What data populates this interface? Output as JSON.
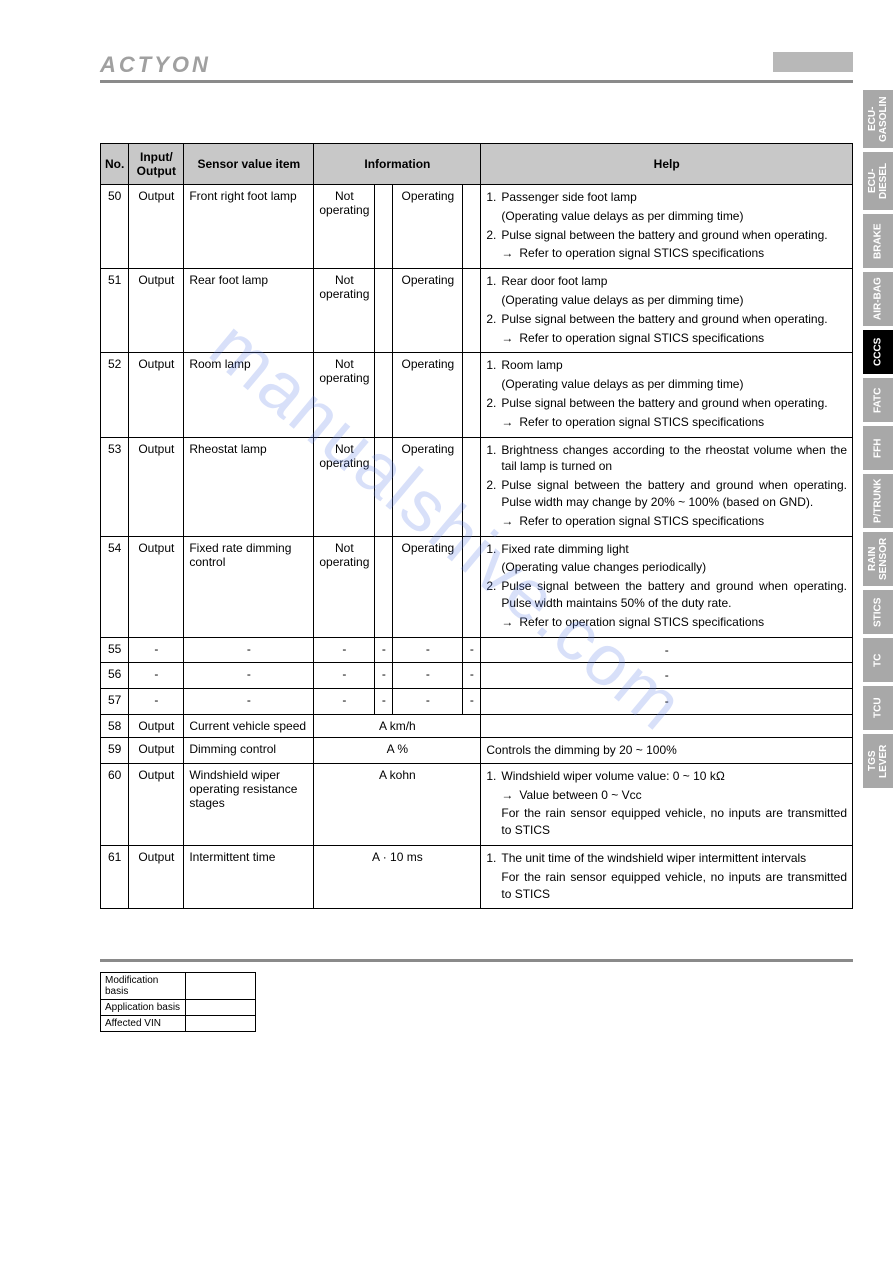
{
  "header": {
    "logo": "ACTYON"
  },
  "watermark": "manualshive.com",
  "table": {
    "headers": {
      "no": "No.",
      "io": "Input/\nOutput",
      "sensor": "Sensor value item",
      "info": "Information",
      "help": "Help"
    },
    "rows": [
      {
        "no": "50",
        "io": "Output",
        "sensor": "Front right foot lamp",
        "i1": "Not operating",
        "i2": "",
        "i3": "Operating",
        "i4": "",
        "help": [
          {
            "n": "1.",
            "t": "Passenger side foot lamp"
          },
          {
            "sub": "(Operating value delays as per dimming time)"
          },
          {
            "n": "2.",
            "t": "Pulse signal between the battery and ground when operating."
          },
          {
            "arrow": "→",
            "t": "Refer to operation signal STICS specifications"
          }
        ]
      },
      {
        "no": "51",
        "io": "Output",
        "sensor": "Rear foot lamp",
        "i1": "Not operating",
        "i2": "",
        "i3": "Operating",
        "i4": "",
        "help": [
          {
            "n": "1.",
            "t": "Rear door foot lamp"
          },
          {
            "sub": "(Operating value delays as per dimming time)"
          },
          {
            "n": "2.",
            "t": "Pulse signal between the battery and ground when operating."
          },
          {
            "arrow": "→",
            "t": "Refer to operation signal STICS specifications"
          }
        ]
      },
      {
        "no": "52",
        "io": "Output",
        "sensor": "Room lamp",
        "i1": "Not operating",
        "i2": "",
        "i3": "Operating",
        "i4": "",
        "help": [
          {
            "n": "1.",
            "t": "Room lamp"
          },
          {
            "sub": "(Operating value delays as per dimming time)"
          },
          {
            "n": "2.",
            "t": "Pulse signal between the battery and ground when operating."
          },
          {
            "arrow": "→",
            "t": "Refer to operation signal STICS specifications"
          }
        ]
      },
      {
        "no": "53",
        "io": "Output",
        "sensor": "Rheostat lamp",
        "i1": "Not operating",
        "i2": "",
        "i3": "Operating",
        "i4": "",
        "help": [
          {
            "n": "1.",
            "t": "Brightness changes according to the rheostat volume when the tail lamp is turned on"
          },
          {
            "n": "2.",
            "t": "Pulse signal between the battery and ground when operating. Pulse width may change by 20% ~ 100% (based on GND)."
          },
          {
            "arrow": "→",
            "t": "Refer to operation signal STICS specifications"
          }
        ]
      },
      {
        "no": "54",
        "io": "Output",
        "sensor": "Fixed rate dimming control",
        "i1": "Not operating",
        "i2": "",
        "i3": "Operating",
        "i4": "",
        "help": [
          {
            "n": "1.",
            "t": "Fixed rate dimming light"
          },
          {
            "sub": "(Operating value changes periodically)"
          },
          {
            "n": "2.",
            "t": "Pulse signal between the battery and ground when operating. Pulse width maintains 50% of the duty rate."
          },
          {
            "arrow": "→",
            "t": "Refer to operation signal STICS specifications"
          }
        ]
      },
      {
        "no": "55",
        "io": "-",
        "sensor": "-",
        "i1": "-",
        "i2": "-",
        "i3": "-",
        "i4": "-",
        "help_plain": "-"
      },
      {
        "no": "56",
        "io": "-",
        "sensor": "-",
        "i1": "-",
        "i2": "-",
        "i3": "-",
        "i4": "-",
        "help_plain": "-"
      },
      {
        "no": "57",
        "io": "-",
        "sensor": "-",
        "i1": "-",
        "i2": "-",
        "i3": "-",
        "i4": "-",
        "help_plain": "-"
      },
      {
        "no": "58",
        "io": "Output",
        "sensor": "Current vehicle speed",
        "info_merged": "A km/h",
        "help_plain": ""
      },
      {
        "no": "59",
        "io": "Output",
        "sensor": "Dimming control",
        "info_merged": "A %",
        "help_plain": "Controls the dimming by 20 ~ 100%"
      },
      {
        "no": "60",
        "io": "Output",
        "sensor": "Windshield wiper operating resistance stages",
        "info_merged": "A kohn",
        "help": [
          {
            "n": "1.",
            "t": "Windshield wiper volume value: 0 ~ 10 kΩ"
          },
          {
            "arrow": "→",
            "t": "Value between 0 ~ Vcc"
          },
          {
            "sub": "For the rain sensor equipped vehicle, no inputs are transmitted to STICS"
          }
        ]
      },
      {
        "no": "61",
        "io": "Output",
        "sensor": "Intermittent time",
        "info_merged": "A · 10 ms",
        "help": [
          {
            "n": "1.",
            "t": "The unit time of the windshield wiper intermittent intervals"
          },
          {
            "sub": "For the rain sensor equipped vehicle, no inputs are transmitted to STICS"
          }
        ]
      }
    ]
  },
  "footer": {
    "rows": [
      {
        "label": "Modification basis",
        "value": ""
      },
      {
        "label": "Application basis",
        "value": ""
      },
      {
        "label": "Affected VIN",
        "value": ""
      }
    ]
  },
  "tabs": [
    {
      "label": "ECU-GASOLIN",
      "active": false,
      "cls": "tall"
    },
    {
      "label": "ECU-DIESEL",
      "active": false,
      "cls": "tall"
    },
    {
      "label": "BRAKE",
      "active": false,
      "cls": ""
    },
    {
      "label": "AIR-BAG",
      "active": false,
      "cls": ""
    },
    {
      "label": "CCCS",
      "active": true,
      "cls": "short"
    },
    {
      "label": "FATC",
      "active": false,
      "cls": "short"
    },
    {
      "label": "FFH",
      "active": false,
      "cls": "short"
    },
    {
      "label": "P/TRUNK",
      "active": false,
      "cls": ""
    },
    {
      "label": "RAIN SENSOR",
      "active": false,
      "cls": ""
    },
    {
      "label": "STICS",
      "active": false,
      "cls": "short"
    },
    {
      "label": "TC",
      "active": false,
      "cls": "short"
    },
    {
      "label": "TCU",
      "active": false,
      "cls": "short"
    },
    {
      "label": "TGS LEVER",
      "active": false,
      "cls": ""
    }
  ]
}
